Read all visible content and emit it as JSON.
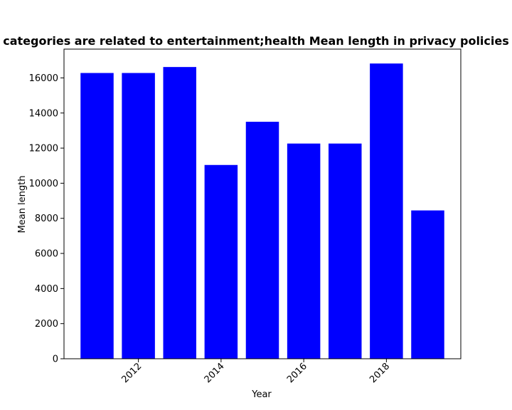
{
  "chart_data": {
    "type": "bar",
    "title": "categories are related to entertainment;health Mean length in privacy policies",
    "xlabel": "Year",
    "ylabel": "Mean length",
    "x": [
      2011,
      2012,
      2013,
      2014,
      2015,
      2016,
      2017,
      2018,
      2019
    ],
    "values": [
      16280,
      16280,
      16620,
      11040,
      13500,
      12260,
      12260,
      16820,
      8450
    ],
    "xlim": [
      2010.2,
      2019.8
    ],
    "ylim": [
      0,
      17640
    ],
    "xticks": [
      2012,
      2014,
      2016,
      2018
    ],
    "yticks": [
      0,
      2000,
      4000,
      6000,
      8000,
      10000,
      12000,
      14000,
      16000
    ],
    "bar_color": "#0000ff",
    "grid": false
  }
}
